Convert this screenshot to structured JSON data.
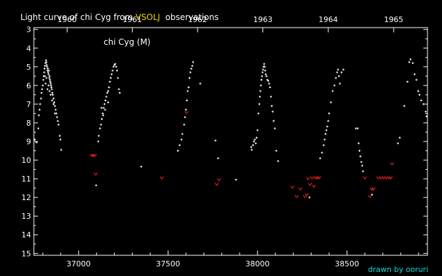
{
  "title": {
    "prefix": "Light curve of chi Cyg from ",
    "source": "VSOLJ",
    "suffix": "  observations",
    "source_color": "#e8d400"
  },
  "credit": {
    "text": "drawn by ooruri",
    "color": "#00e0e0"
  },
  "star_label": "chi Cyg (M)",
  "colors": {
    "background": "#000000",
    "axes": "#ffffff",
    "observation": "#ffffff",
    "upper_limit": "#ff2020"
  },
  "chart_data": {
    "type": "scatter",
    "title": "Light curve of chi Cyg from VSOLJ observations",
    "xlim": [
      36750,
      38950
    ],
    "ylim": [
      15.1,
      2.9
    ],
    "y_inverted": true,
    "x_ticks": [
      37000,
      37500,
      38000,
      38500
    ],
    "y_ticks": [
      3,
      4,
      5,
      6,
      7,
      8,
      9,
      10,
      11,
      12,
      13,
      14,
      15
    ],
    "top_axis": {
      "ticks": [
        {
          "x": 36936,
          "label": "1960"
        },
        {
          "x": 37300,
          "label": "1961"
        },
        {
          "x": 37665,
          "label": "1962"
        },
        {
          "x": 38030,
          "label": "1963"
        },
        {
          "x": 38395,
          "label": "1964"
        },
        {
          "x": 38761,
          "label": "1965"
        }
      ]
    },
    "grid": false,
    "series": [
      {
        "kind": "observation",
        "marker": "+",
        "points": [
          [
            36755,
            8.9
          ],
          [
            36765,
            9.05
          ],
          [
            36775,
            8.3
          ],
          [
            36778,
            7.6
          ],
          [
            36782,
            7.3
          ],
          [
            36785,
            7.0
          ],
          [
            36790,
            6.7
          ],
          [
            36793,
            6.4
          ],
          [
            36796,
            6.2
          ],
          [
            36800,
            6.0
          ],
          [
            36803,
            5.7
          ],
          [
            36805,
            5.5
          ],
          [
            36808,
            5.3
          ],
          [
            36810,
            5.1
          ],
          [
            36812,
            4.95
          ],
          [
            36815,
            4.8
          ],
          [
            36818,
            4.65
          ],
          [
            36820,
            4.75
          ],
          [
            36822,
            4.9
          ],
          [
            36824,
            5.0
          ],
          [
            36826,
            5.2
          ],
          [
            36828,
            5.1
          ],
          [
            36830,
            5.3
          ],
          [
            36832,
            5.4
          ],
          [
            36834,
            5.2
          ],
          [
            36836,
            5.6
          ],
          [
            36838,
            5.5
          ],
          [
            36840,
            5.7
          ],
          [
            36842,
            5.8
          ],
          [
            36844,
            5.9
          ],
          [
            36846,
            6.0
          ],
          [
            36848,
            6.1
          ],
          [
            36850,
            6.2
          ],
          [
            36853,
            6.4
          ],
          [
            36856,
            6.5
          ],
          [
            36860,
            6.7
          ],
          [
            36864,
            6.9
          ],
          [
            36868,
            7.1
          ],
          [
            36872,
            7.3
          ],
          [
            36876,
            7.5
          ],
          [
            36880,
            7.7
          ],
          [
            36884,
            7.9
          ],
          [
            36888,
            8.1
          ],
          [
            36895,
            8.7
          ],
          [
            36898,
            8.9
          ],
          [
            36903,
            9.45
          ],
          [
            36812,
            5.5
          ],
          [
            36816,
            5.9
          ],
          [
            36820,
            5.6
          ],
          [
            36826,
            6.2
          ],
          [
            36832,
            6.0
          ],
          [
            36838,
            6.3
          ],
          [
            36844,
            6.5
          ],
          [
            36852,
            6.8
          ],
          [
            36860,
            7.0
          ],
          [
            36868,
            7.5
          ],
          [
            37098,
            11.35
          ],
          [
            37110,
            9.0
          ],
          [
            37113,
            8.7
          ],
          [
            37120,
            8.3
          ],
          [
            37125,
            8.1
          ],
          [
            37130,
            7.8
          ],
          [
            37135,
            7.5
          ],
          [
            37140,
            7.2
          ],
          [
            37145,
            7.0
          ],
          [
            37150,
            6.8
          ],
          [
            37155,
            6.6
          ],
          [
            37160,
            6.4
          ],
          [
            37165,
            6.3
          ],
          [
            37170,
            6.1
          ],
          [
            37175,
            5.8
          ],
          [
            37180,
            5.6
          ],
          [
            37185,
            5.4
          ],
          [
            37190,
            5.2
          ],
          [
            37195,
            5.0
          ],
          [
            37200,
            4.9
          ],
          [
            37205,
            4.85
          ],
          [
            37210,
            5.0
          ],
          [
            37215,
            5.2
          ],
          [
            37220,
            5.6
          ],
          [
            37225,
            6.2
          ],
          [
            37230,
            6.4
          ],
          [
            37128,
            7.2
          ],
          [
            37138,
            7.6
          ],
          [
            37148,
            7.3
          ],
          [
            37165,
            6.9
          ],
          [
            37350,
            10.35
          ],
          [
            37555,
            9.5
          ],
          [
            37565,
            9.2
          ],
          [
            37575,
            8.9
          ],
          [
            37580,
            8.6
          ],
          [
            37590,
            8.1
          ],
          [
            37595,
            7.7
          ],
          [
            37600,
            7.3
          ],
          [
            37605,
            6.8
          ],
          [
            37610,
            6.3
          ],
          [
            37615,
            6.1
          ],
          [
            37620,
            5.6
          ],
          [
            37625,
            5.3
          ],
          [
            37630,
            5.1
          ],
          [
            37635,
            4.95
          ],
          [
            37640,
            4.75
          ],
          [
            37680,
            5.9
          ],
          [
            37765,
            8.95
          ],
          [
            37780,
            9.9
          ],
          [
            37880,
            11.05
          ],
          [
            37965,
            9.3
          ],
          [
            37968,
            9.45
          ],
          [
            37975,
            9.2
          ],
          [
            37980,
            9.0
          ],
          [
            37985,
            8.9
          ],
          [
            37990,
            9.1
          ],
          [
            37995,
            8.8
          ],
          [
            38000,
            8.4
          ],
          [
            38005,
            7.5
          ],
          [
            38010,
            7.0
          ],
          [
            38013,
            6.6
          ],
          [
            38016,
            6.3
          ],
          [
            38019,
            6.0
          ],
          [
            38022,
            5.7
          ],
          [
            38025,
            5.5
          ],
          [
            38028,
            5.3
          ],
          [
            38031,
            5.15
          ],
          [
            38034,
            5.0
          ],
          [
            38037,
            4.85
          ],
          [
            38040,
            5.0
          ],
          [
            38043,
            5.2
          ],
          [
            38046,
            5.4
          ],
          [
            38050,
            5.5
          ],
          [
            38055,
            5.7
          ],
          [
            38060,
            5.75
          ],
          [
            38065,
            5.9
          ],
          [
            38070,
            6.1
          ],
          [
            38075,
            6.6
          ],
          [
            38080,
            7.1
          ],
          [
            38085,
            7.4
          ],
          [
            38090,
            7.9
          ],
          [
            38097,
            8.3
          ],
          [
            38105,
            9.5
          ],
          [
            38115,
            10.05
          ],
          [
            38290,
            12.0
          ],
          [
            38350,
            9.9
          ],
          [
            38360,
            9.6
          ],
          [
            38370,
            9.2
          ],
          [
            38375,
            8.9
          ],
          [
            38380,
            8.6
          ],
          [
            38385,
            8.4
          ],
          [
            38390,
            8.2
          ],
          [
            38395,
            7.9
          ],
          [
            38400,
            7.5
          ],
          [
            38410,
            6.9
          ],
          [
            38420,
            6.3
          ],
          [
            38430,
            6.0
          ],
          [
            38438,
            5.6
          ],
          [
            38445,
            5.3
          ],
          [
            38450,
            5.15
          ],
          [
            38455,
            5.5
          ],
          [
            38460,
            5.9
          ],
          [
            38470,
            5.3
          ],
          [
            38480,
            5.15
          ],
          [
            38550,
            8.3
          ],
          [
            38560,
            8.3
          ],
          [
            38565,
            9.1
          ],
          [
            38570,
            9.5
          ],
          [
            38575,
            9.8
          ],
          [
            38580,
            10.1
          ],
          [
            38585,
            10.3
          ],
          [
            38590,
            10.6
          ],
          [
            38640,
            11.85
          ],
          [
            38785,
            9.1
          ],
          [
            38795,
            8.8
          ],
          [
            38820,
            7.1
          ],
          [
            38838,
            5.8
          ],
          [
            38848,
            4.75
          ],
          [
            38855,
            4.6
          ],
          [
            38868,
            4.8
          ],
          [
            38878,
            5.4
          ],
          [
            38888,
            5.7
          ],
          [
            38898,
            6.3
          ],
          [
            38905,
            6.5
          ],
          [
            38915,
            6.8
          ],
          [
            38928,
            7.0
          ],
          [
            38940,
            7.4
          ],
          [
            38945,
            7.65
          ]
        ]
      },
      {
        "kind": "upper_limit",
        "marker": "v",
        "points": [
          [
            37073,
            9.75
          ],
          [
            37082,
            9.75
          ],
          [
            37091,
            9.75
          ],
          [
            37096,
            10.75
          ],
          [
            37465,
            10.95
          ],
          [
            37603,
            7.45
          ],
          [
            37772,
            11.3
          ],
          [
            37785,
            11.05
          ],
          [
            38195,
            11.45
          ],
          [
            38218,
            11.95
          ],
          [
            38240,
            11.55
          ],
          [
            38265,
            11.95
          ],
          [
            38275,
            11.85
          ],
          [
            38282,
            11.0
          ],
          [
            38293,
            11.3
          ],
          [
            38305,
            10.95
          ],
          [
            38315,
            11.4
          ],
          [
            38325,
            10.95
          ],
          [
            38335,
            10.95
          ],
          [
            38345,
            10.95
          ],
          [
            38600,
            10.95
          ],
          [
            38628,
            11.95
          ],
          [
            38638,
            11.55
          ],
          [
            38648,
            11.55
          ],
          [
            38675,
            10.95
          ],
          [
            38690,
            10.95
          ],
          [
            38705,
            10.95
          ],
          [
            38720,
            10.95
          ],
          [
            38735,
            10.95
          ],
          [
            38745,
            10.95
          ],
          [
            38752,
            10.2
          ]
        ]
      }
    ]
  }
}
